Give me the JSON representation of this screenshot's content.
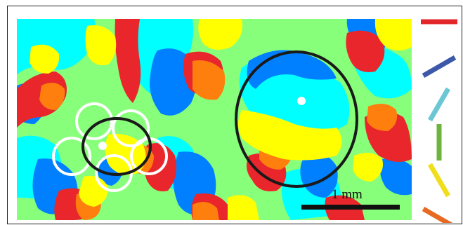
{
  "figure": {
    "scale_bar_label": "1 mm"
  },
  "orientation_legend": {
    "items": [
      {
        "angle_deg": 0,
        "color": "#e2262a"
      },
      {
        "angle_deg": 30,
        "color": "#3c58a8"
      },
      {
        "angle_deg": 60,
        "color": "#6cc7d5"
      },
      {
        "angle_deg": 90,
        "color": "#6db43f"
      },
      {
        "angle_deg": 120,
        "color": "#f0de1a"
      },
      {
        "angle_deg": 150,
        "color": "#e86a22"
      }
    ]
  },
  "map_palette": {
    "red": "#e8262b",
    "orange": "#ff7f0e",
    "yellow": "#ffff00",
    "green": "#88ff7a",
    "cyan": "#00ffff",
    "blue": "#0080ff"
  },
  "markers": {
    "small_receptive_field_count": 5,
    "large_circle_color": "#1a1a1a",
    "small_circle_color": "#ffffff",
    "center_dot_color": "#ffffff"
  }
}
